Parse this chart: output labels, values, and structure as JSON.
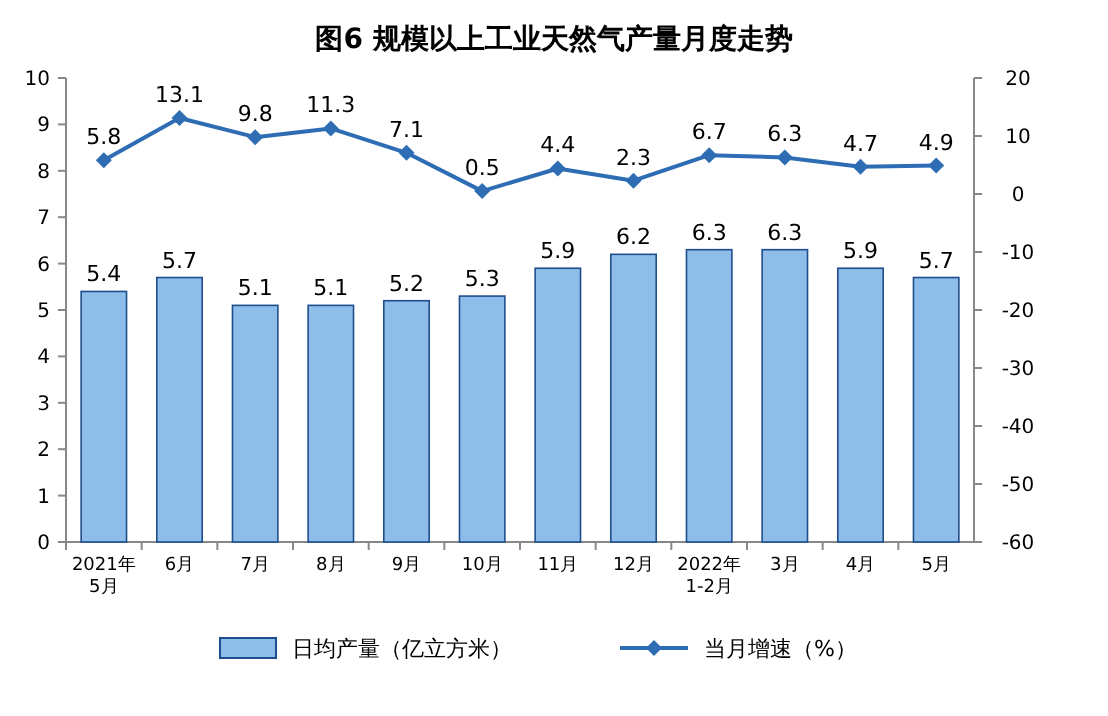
{
  "chart_data": {
    "type": "bar",
    "title": "图6 规模以上工业天然气产量月度走势",
    "categories": [
      "2021年\n5月",
      "6月",
      "7月",
      "8月",
      "9月",
      "10月",
      "11月",
      "12月",
      "2022年\n1-2月",
      "3月",
      "4月",
      "5月"
    ],
    "series": [
      {
        "name": "日均产量（亿立方米）",
        "color": "#8dbde8",
        "values": [
          5.4,
          5.7,
          5.1,
          5.1,
          5.2,
          5.3,
          5.9,
          6.2,
          6.3,
          6.3,
          5.9,
          5.7
        ]
      },
      {
        "name": "当月增速（%）",
        "type": "line",
        "axis": "y2",
        "color": "#2e6db4",
        "marker": "diamond",
        "values": [
          5.8,
          13.1,
          9.8,
          11.3,
          7.1,
          0.5,
          4.4,
          2.3,
          6.7,
          6.3,
          4.7,
          4.9
        ]
      }
    ],
    "ylim": [
      0,
      10
    ],
    "yticks": [
      0,
      1,
      2,
      3,
      4,
      5,
      6,
      7,
      8,
      9,
      10
    ],
    "y2lim": [
      -60,
      20
    ],
    "y2ticks": [
      -60,
      -50,
      -40,
      -30,
      -20,
      -10,
      0,
      10,
      20
    ],
    "data_labels": true,
    "legend": "bottom",
    "grid": false
  }
}
